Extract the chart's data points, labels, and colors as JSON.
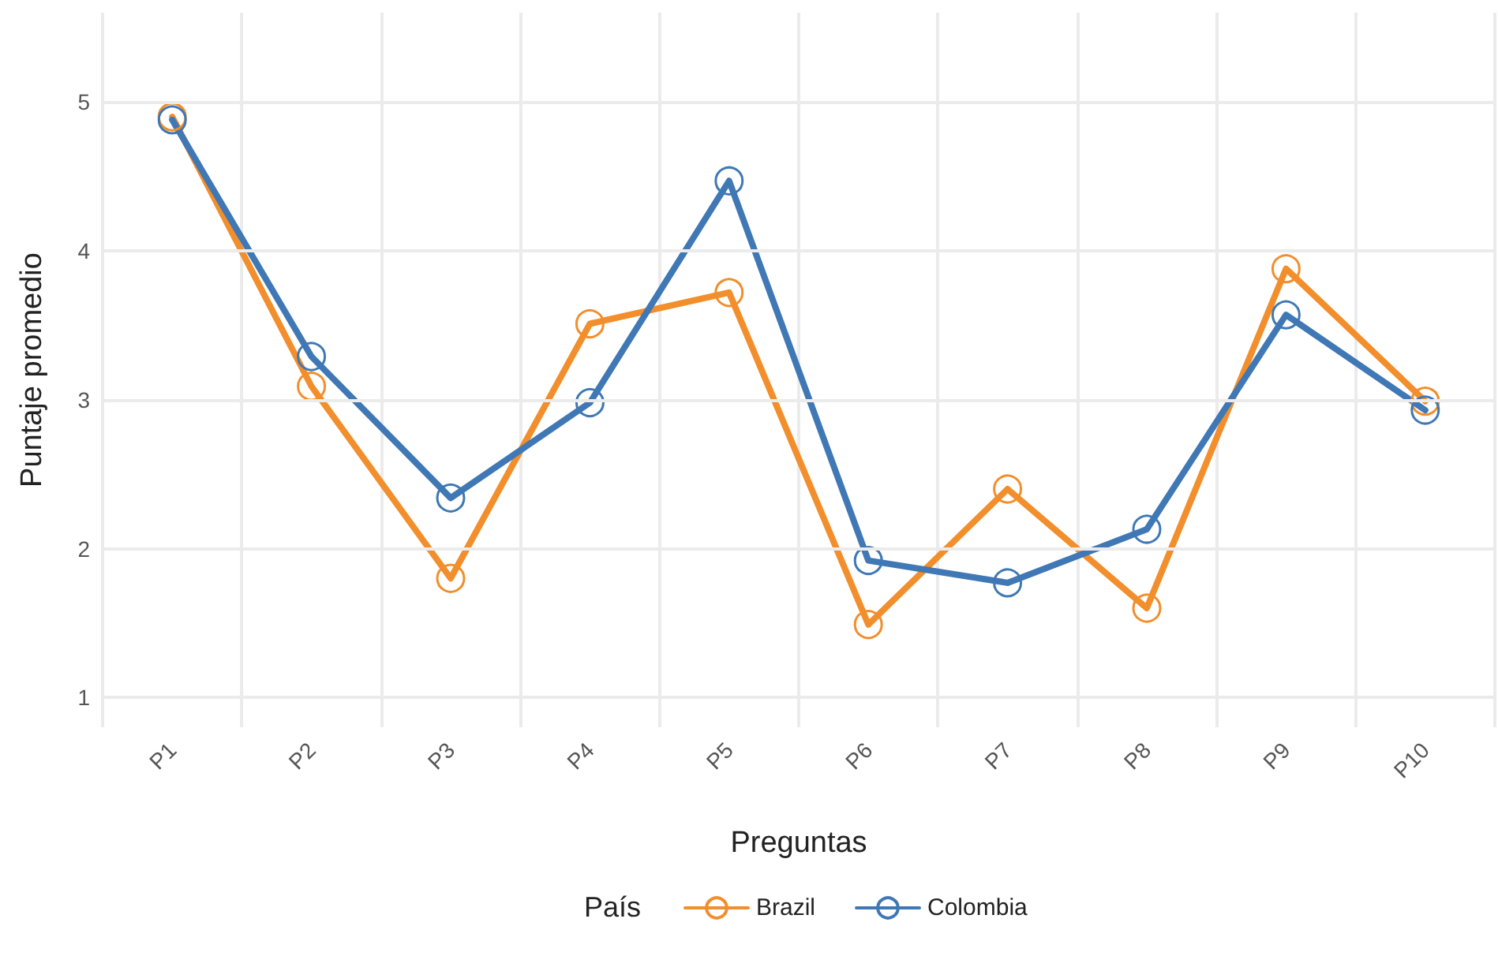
{
  "chart_data": {
    "type": "line",
    "xlabel": "Preguntas",
    "ylabel": "Puntaje promedio",
    "legend_title": "País",
    "categories": [
      "P1",
      "P2",
      "P3",
      "P4",
      "P5",
      "P6",
      "P7",
      "P8",
      "P9",
      "P10"
    ],
    "series": [
      {
        "name": "Brazil",
        "color": "#f28e2b",
        "values": [
          4.9,
          3.09,
          1.8,
          3.51,
          3.72,
          1.49,
          2.4,
          1.6,
          3.88,
          2.99
        ]
      },
      {
        "name": "Colombia",
        "color": "#3f78b5",
        "values": [
          4.88,
          3.29,
          2.34,
          2.98,
          4.47,
          1.92,
          1.77,
          2.13,
          3.57,
          2.93
        ]
      }
    ],
    "ylim": [
      0.8,
      5.6
    ],
    "yticks": [
      1,
      2,
      3,
      4,
      5
    ],
    "grid": true,
    "legend": "bottom",
    "marker": "circle",
    "line_style": "solid"
  }
}
